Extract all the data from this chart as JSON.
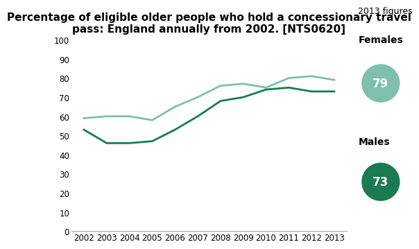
{
  "title": "Percentage of eligible older people who hold a concessionary travel\npass: England annually from 2002. [NTS0620]",
  "years": [
    2002,
    2003,
    2004,
    2005,
    2006,
    2007,
    2008,
    2009,
    2010,
    2011,
    2012,
    2013
  ],
  "females": [
    59,
    60,
    60,
    58,
    65,
    70,
    76,
    77,
    75,
    80,
    81,
    79
  ],
  "males": [
    53,
    46,
    46,
    47,
    53,
    60,
    68,
    70,
    74,
    75,
    73,
    73
  ],
  "female_color": "#7fbfab",
  "male_color": "#1a7a52",
  "female_label": "Females",
  "male_label": "Males",
  "female_2013": 79,
  "male_2013": 73,
  "annotation_label": "2013 figures",
  "ylim": [
    0,
    100
  ],
  "yticks": [
    0,
    10,
    20,
    30,
    40,
    50,
    60,
    70,
    80,
    90,
    100
  ],
  "background_color": "#ffffff",
  "title_fontsize": 11,
  "line_width": 2.0
}
